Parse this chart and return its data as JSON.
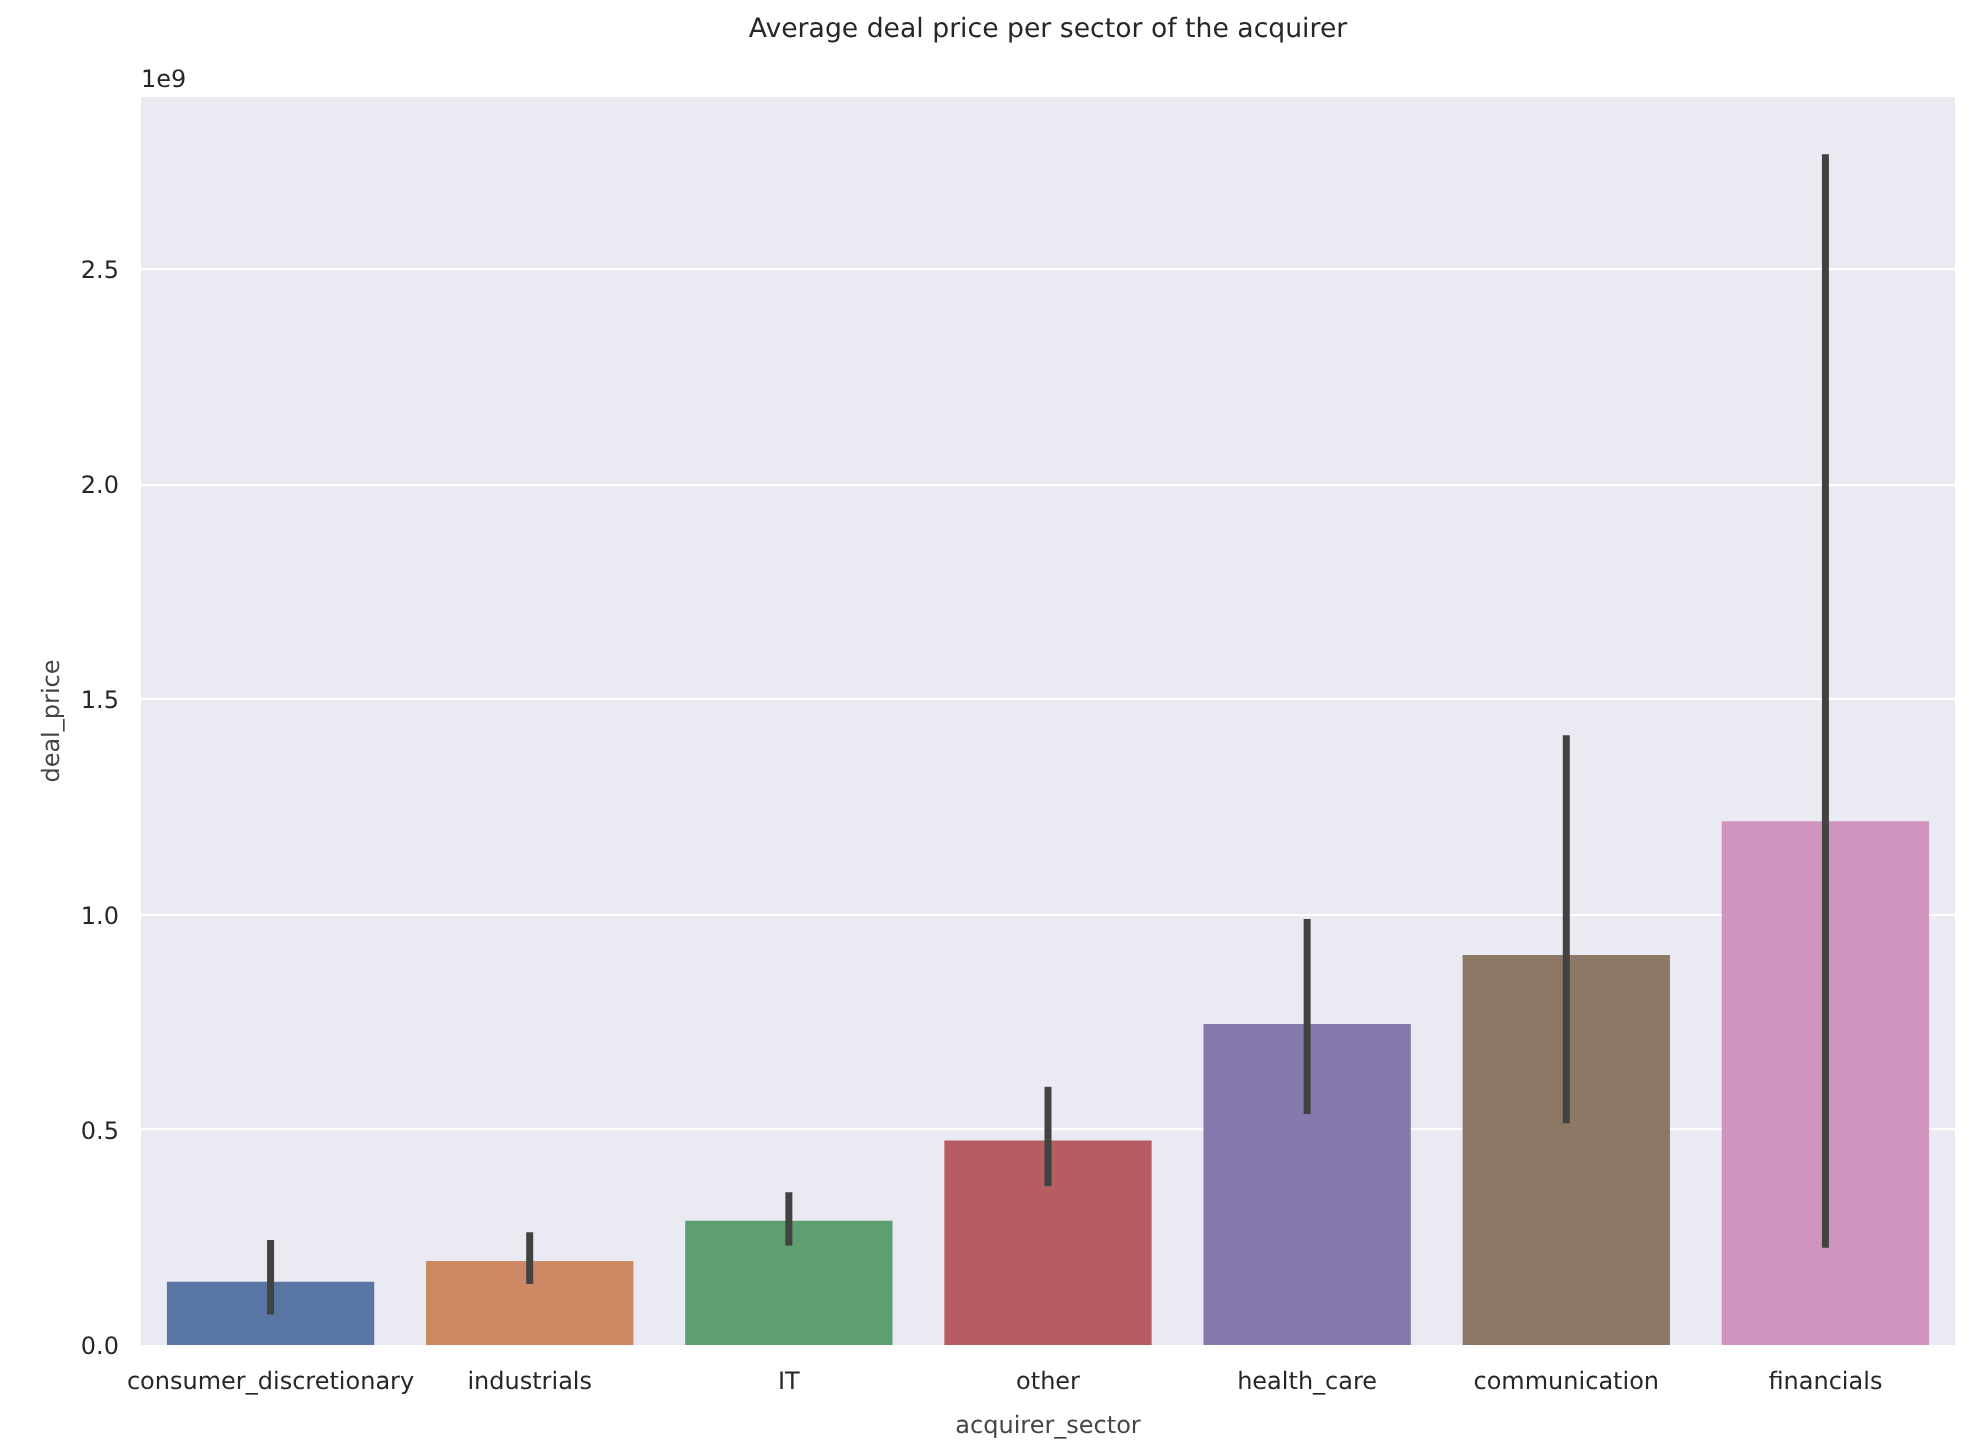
{
  "chart_data": {
    "type": "bar",
    "title": "Average deal price per sector of the acquirer",
    "xlabel": "acquirer_sector",
    "ylabel": "deal_price",
    "categories": [
      "consumer_discretionary",
      "industrials",
      "IT",
      "other",
      "health_care",
      "communication",
      "financials"
    ],
    "values": [
      0.147,
      0.195,
      0.289,
      0.475,
      0.746,
      0.906,
      1.217
    ],
    "colors": [
      "#5975a4",
      "#cc8963",
      "#5f9e6e",
      "#b55d60",
      "#857aab",
      "#8d7866",
      "#d095bf"
    ],
    "errors": [
      [
        0.071,
        0.244
      ],
      [
        0.142,
        0.262
      ],
      [
        0.231,
        0.355
      ],
      [
        0.369,
        0.6
      ],
      [
        0.537,
        0.99
      ],
      [
        0.515,
        1.417
      ],
      [
        0.226,
        2.767
      ]
    ],
    "ylim": [
      0,
      2.9
    ],
    "yticks": [
      {
        "value": 0,
        "label": "0.0"
      },
      0.5,
      {
        "value": 1,
        "label": "1.0"
      },
      1.5,
      {
        "value": 2,
        "label": "2.0"
      },
      2.5
    ],
    "annotations": [
      "1e9"
    ],
    "grid": "y"
  }
}
